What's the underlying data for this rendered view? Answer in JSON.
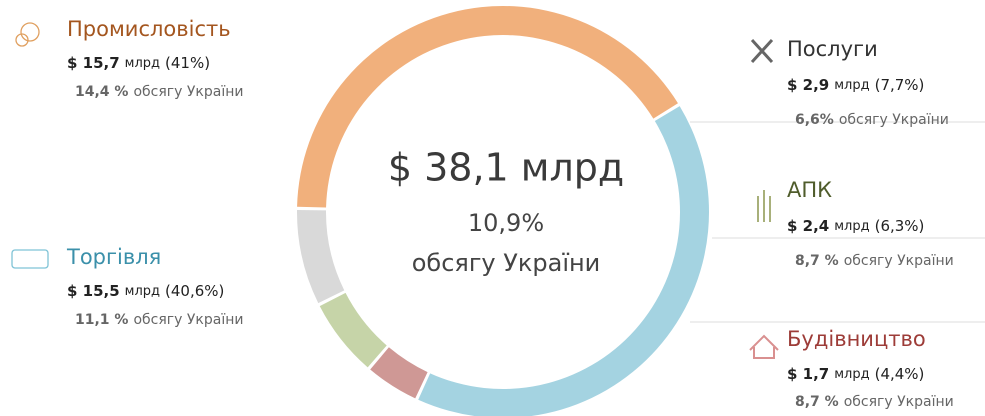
{
  "chart_data": {
    "type": "donut",
    "categories": [
      "Промисловість",
      "Торгівля",
      "Будівництво",
      "АПК",
      "Послуги"
    ],
    "values": [
      41,
      40.6,
      4.4,
      6.3,
      7.7
    ],
    "value_labels": [
      "(41%)",
      "(40,6%)",
      "(4,4%)",
      "(6,3%)",
      "(7,7%)"
    ],
    "amounts": [
      15.7,
      15.5,
      1.7,
      2.4,
      2.9
    ],
    "amount_labels": [
      "$ 15,7",
      "$ 15,5",
      "$ 1,7",
      "$ 2,4",
      "$ 2,9"
    ],
    "amount_unit": "млрд",
    "shares": [
      14.4,
      11.1,
      8.7,
      8.7,
      6.6
    ],
    "share_labels": [
      "14,4 %",
      "11,1 %",
      "8,7 %",
      "8,7 %",
      "6,6%"
    ],
    "share_suffix": "обсягу України",
    "colors": [
      "#f1b07c",
      "#a4d3e1",
      "#cf9895",
      "#c6d4a8",
      "#d9d9d9"
    ],
    "title_colors": [
      "#a4561f",
      "#3b90aa",
      "#9d3c38",
      "#4f5c2b",
      "#333333"
    ],
    "total_label": "$ 38,1 млрд",
    "total_share_label": "10,9%",
    "total_share_text": "обсягу України"
  }
}
